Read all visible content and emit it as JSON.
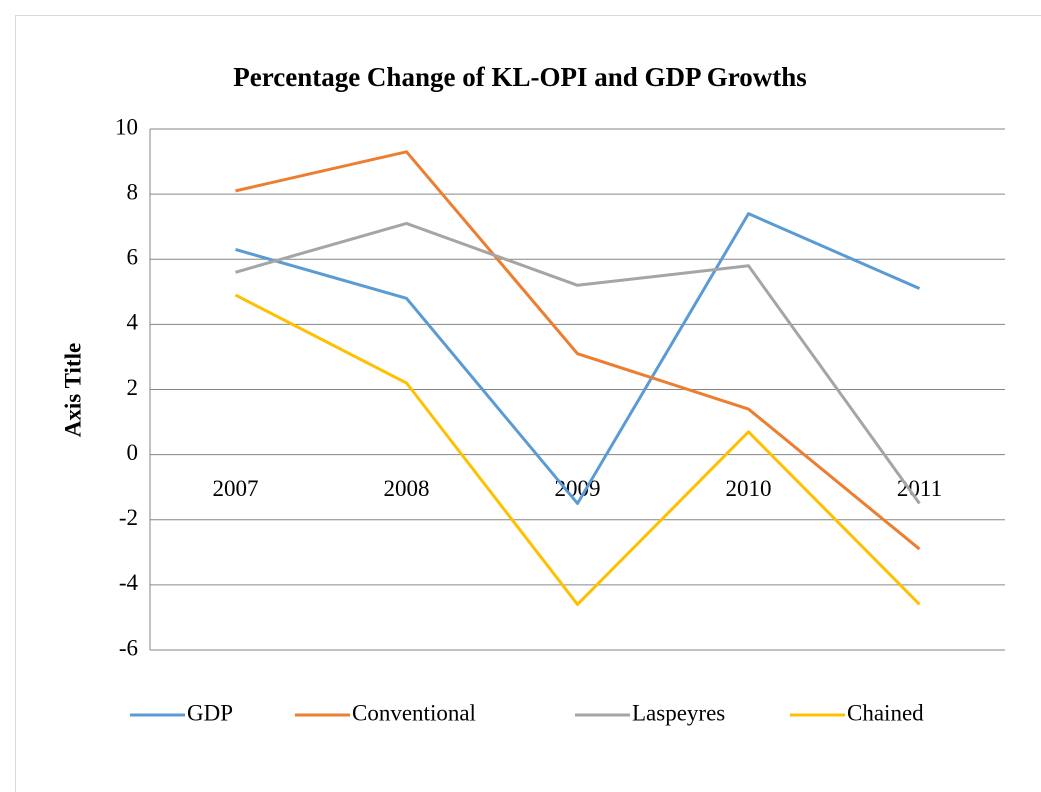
{
  "chart_data": {
    "type": "line",
    "title": "Percentage Change of KL-OPI and GDP Growths",
    "y_label": "Axis Title",
    "categories": [
      "2007",
      "2008",
      "2009",
      "2010",
      "2011"
    ],
    "series": [
      {
        "name": "GDP",
        "color": "#5b9bd5",
        "values": [
          6.3,
          4.8,
          -1.5,
          7.4,
          5.1
        ]
      },
      {
        "name": "Conventional",
        "color": "#ed7d31",
        "values": [
          8.1,
          9.3,
          3.1,
          1.4,
          -2.9
        ]
      },
      {
        "name": "Laspeyres",
        "color": "#a5a5a5",
        "values": [
          5.6,
          7.1,
          5.2,
          5.8,
          -1.5
        ]
      },
      {
        "name": "Chained",
        "color": "#ffc000",
        "values": [
          4.9,
          2.2,
          -4.6,
          0.7,
          -4.6
        ]
      }
    ],
    "ylim": [
      -6,
      10
    ],
    "yticks": [
      -6,
      -4,
      -2,
      0,
      2,
      4,
      6,
      8,
      10
    ],
    "grid": true,
    "legend": "bottom"
  }
}
